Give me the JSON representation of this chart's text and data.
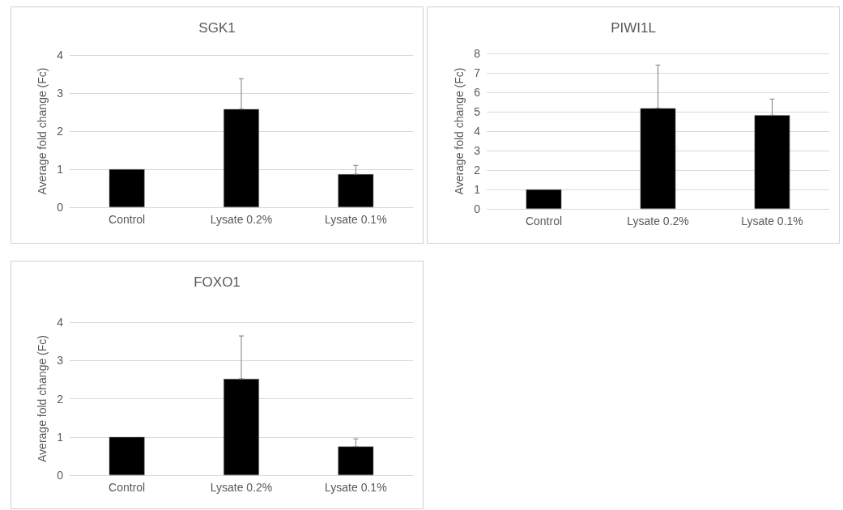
{
  "chart_data": [
    {
      "type": "bar",
      "title": "SGK1",
      "ylabel": "Average fold change (Fc)",
      "categories": [
        "Control",
        "Lysate 0.2%",
        "Lysate 0.1%"
      ],
      "values": [
        1,
        2.58,
        0.87
      ],
      "errors": [
        null,
        [
          2.58,
          3.38
        ],
        [
          0.87,
          1.1
        ]
      ],
      "color": "#000000",
      "ylim": [
        0,
        4
      ],
      "yticks": [
        0,
        1,
        2,
        3,
        4
      ],
      "grid": "y"
    },
    {
      "type": "bar",
      "title": "PIWI1L",
      "ylabel": "Average fold change (Fc)",
      "categories": [
        "Control",
        "Lysate 0.2%",
        "Lysate 0.1%"
      ],
      "values": [
        1,
        5.18,
        4.82
      ],
      "errors": [
        null,
        [
          5.18,
          7.4
        ],
        [
          4.82,
          5.65
        ]
      ],
      "color": "#000000",
      "ylim": [
        0,
        8
      ],
      "yticks": [
        0,
        1,
        2,
        3,
        4,
        5,
        6,
        7,
        8
      ],
      "grid": "y"
    },
    {
      "type": "bar",
      "title": "FOXO1",
      "ylabel": "Average fold change (Fc)",
      "categories": [
        "Control",
        "Lysate 0.2%",
        "Lysate 0.1%"
      ],
      "values": [
        1,
        2.52,
        0.75
      ],
      "errors": [
        null,
        [
          2.52,
          3.64
        ],
        [
          0.75,
          0.95
        ]
      ],
      "color": "#000000",
      "ylim": [
        0,
        4
      ],
      "yticks": [
        0,
        1,
        2,
        3,
        4
      ],
      "grid": "y"
    }
  ]
}
